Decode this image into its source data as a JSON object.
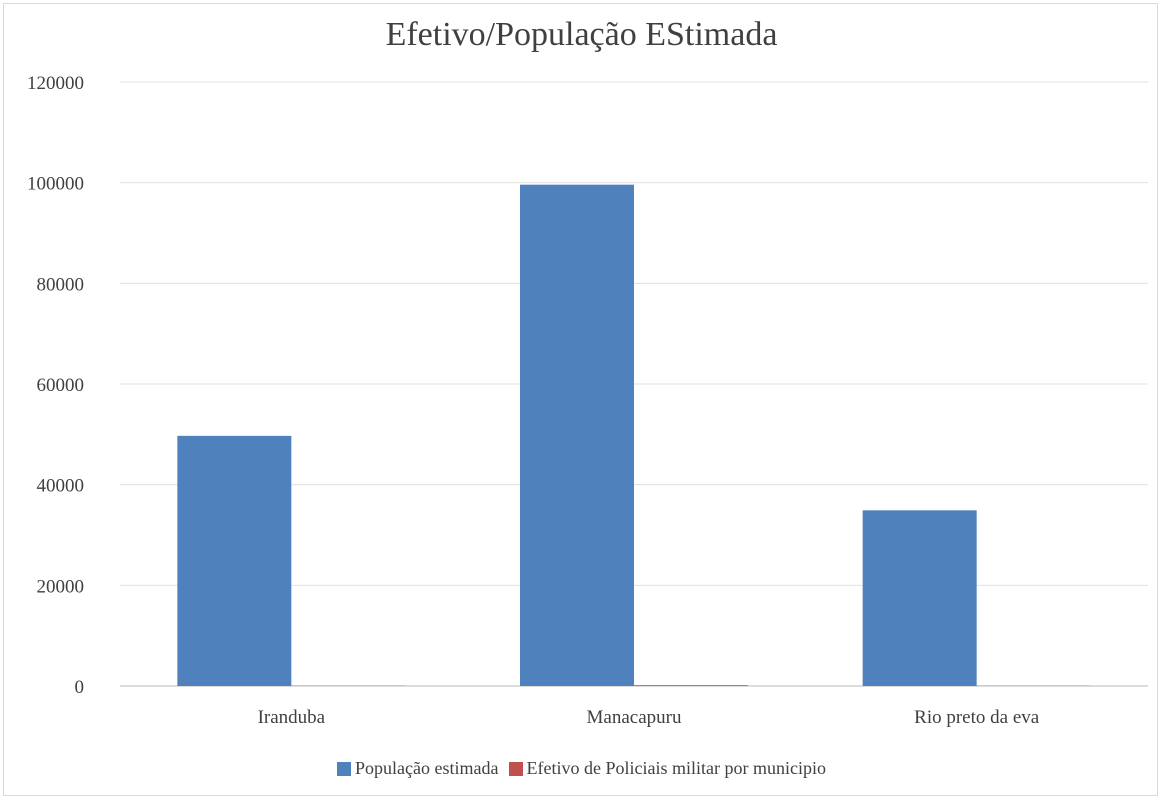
{
  "chart_data": {
    "type": "bar",
    "title": "Efetivo/População EStimada",
    "xlabel": "",
    "ylabel": "",
    "categories": [
      "Iranduba",
      "Manacapuru",
      "Rio preto da eva"
    ],
    "series": [
      {
        "name": "População estimada",
        "color": "#4f81bd",
        "values": [
          49700,
          99600,
          34900
        ]
      },
      {
        "name": "Efetivo de Policiais militar por municipio",
        "color": "#c0504d",
        "values": [
          40,
          150,
          30
        ]
      }
    ],
    "ylim": [
      0,
      120000
    ],
    "yticks": [
      0,
      20000,
      40000,
      60000,
      80000,
      100000,
      120000
    ],
    "ytick_labels": [
      "0",
      "20000",
      "40000",
      "60000",
      "80000",
      "100000",
      "120000"
    ],
    "grid": true,
    "legend_position": "bottom"
  }
}
